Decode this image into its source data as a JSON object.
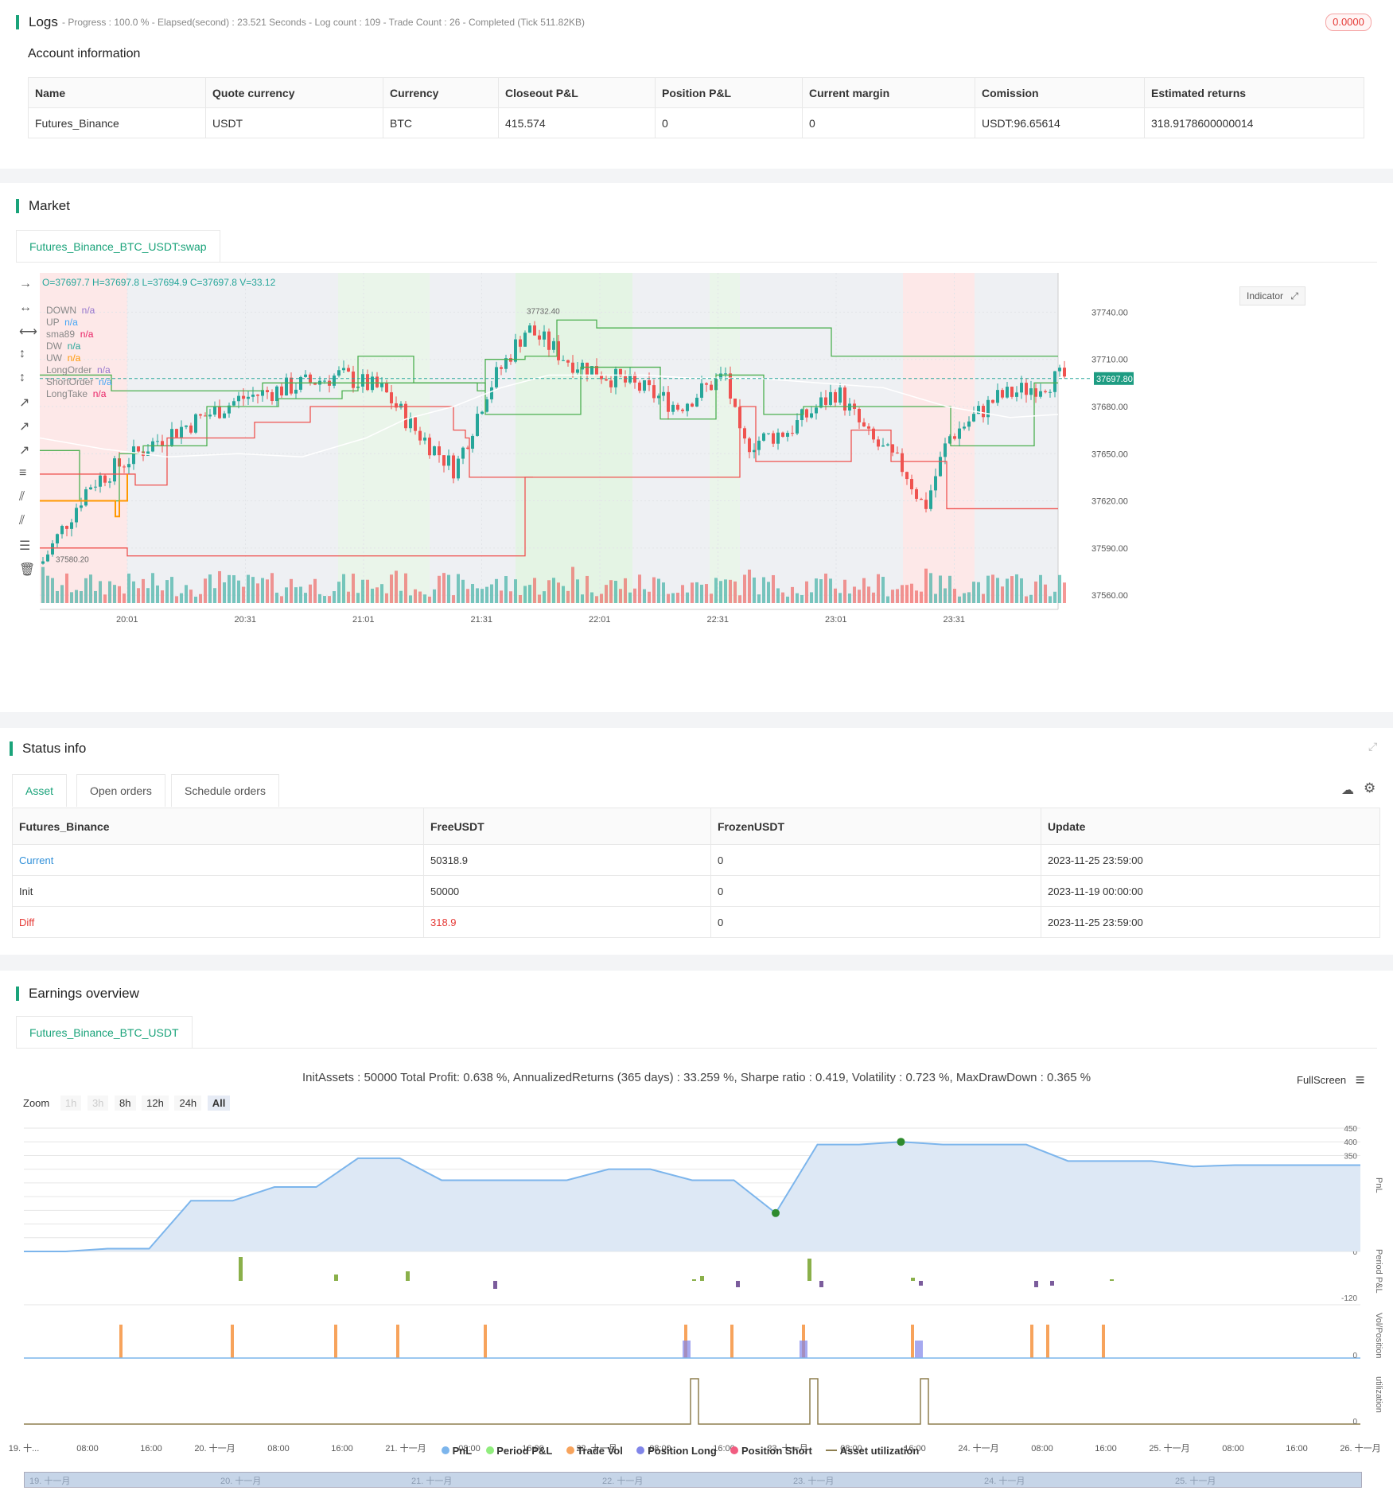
{
  "logs": {
    "title": "Logs",
    "summary": "- Progress : 100.0 % - Elapsed(second) : 23.521 Seconds - Log count : 109 - Trade Count : 26 - Completed (Tick 511.82KB)",
    "badge": "0.0000"
  },
  "account": {
    "title": "Account information",
    "columns": [
      "Name",
      "Quote currency",
      "Currency",
      "Closeout P&L",
      "Position P&L",
      "Current margin",
      "Comission",
      "Estimated returns"
    ],
    "row": [
      "Futures_Binance",
      "USDT",
      "BTC",
      "415.574",
      "0",
      "0",
      "USDT:96.65614",
      "318.9178600000014"
    ]
  },
  "market": {
    "title": "Market",
    "tab": "Futures_Binance_BTC_USDT:swap",
    "ohlc": "O=37697.7 H=37697.8 L=37694.9 C=37697.8 V=33.12",
    "indicator_button": "Indicator",
    "legend": [
      {
        "name": "DOWN",
        "value": "n/a",
        "color": "#9575cd"
      },
      {
        "name": "UP",
        "value": "n/a",
        "color": "#42a5f5"
      },
      {
        "name": "sma89",
        "value": "n/a",
        "color": "#e91e63"
      },
      {
        "name": "DW",
        "value": "n/a",
        "color": "#26a69a"
      },
      {
        "name": "UW",
        "value": "n/a",
        "color": "#ff9800"
      },
      {
        "name": "LongOrder",
        "value": "n/a",
        "color": "#9575cd"
      },
      {
        "name": "ShortOrder",
        "value": "n/a",
        "color": "#42a5f5"
      },
      {
        "name": "LongTake",
        "value": "n/a",
        "color": "#e91e63"
      }
    ],
    "price_label": "37697.80",
    "high_label": "37732.40",
    "low_label": "37580.20"
  },
  "chart_data": [
    {
      "type": "candlestick",
      "y_ticks": [
        "37740.00",
        "37710.00",
        "37680.00",
        "37650.00",
        "37620.00",
        "37590.00",
        "37560.00"
      ],
      "x_ticks": [
        "20:01",
        "20:31",
        "21:01",
        "21:31",
        "22:01",
        "22:31",
        "23:01",
        "23:31"
      ],
      "ylim": [
        37555,
        37765
      ],
      "last_price": 37697.8,
      "annotations": [
        "37732.40",
        "37580.20"
      ]
    },
    {
      "type": "line",
      "title": "InitAssets : 50000 Total Profit: 0.638 %, AnnualizedReturns (365 days) : 33.259 %, Sharpe ratio : 0.419, Volatility : 0.723 %, MaxDrawDown : 0.365 %",
      "series": [
        {
          "name": "PnL",
          "values": [
            0,
            0,
            10,
            10,
            185,
            185,
            235,
            235,
            340,
            340,
            260,
            260,
            260,
            260,
            300,
            300,
            260,
            260,
            140,
            390,
            390,
            400,
            390,
            390,
            390,
            330,
            330,
            330,
            310,
            315,
            315,
            315,
            315
          ]
        }
      ],
      "y_ticks": [
        "450",
        "400",
        "350",
        "300",
        "250",
        "200",
        "150",
        "100",
        "50",
        "0"
      ],
      "ylim": [
        0,
        450
      ],
      "x_ticks": [
        "19. 十...",
        "08:00",
        "16:00",
        "20. 十一月",
        "08:00",
        "16:00",
        "21. 十一月",
        "08:00",
        "16:00",
        "22. 十一月",
        "08:00",
        "16:00",
        "23. 十一月",
        "08:00",
        "16:00",
        "24. 十一月",
        "08:00",
        "16:00",
        "25. 十一月",
        "08:00",
        "16:00",
        "26. 十一月"
      ],
      "sub_axes": [
        "PnL",
        "Period P&L",
        "Vol/Position",
        "utilization"
      ],
      "period_label": "-120",
      "zero_label": "0"
    }
  ],
  "status": {
    "title": "Status info",
    "tabs": [
      "Asset",
      "Open orders",
      "Schedule orders"
    ],
    "columns": [
      "Futures_Binance",
      "FreeUSDT",
      "FrozenUSDT",
      "Update"
    ],
    "rows": [
      {
        "name": "Current",
        "free": "50318.9",
        "frozen": "0",
        "update": "2023-11-25 23:59:00"
      },
      {
        "name": "Init",
        "free": "50000",
        "frozen": "0",
        "update": "2023-11-19 00:00:00"
      },
      {
        "name": "Diff",
        "free": "318.9",
        "frozen": "0",
        "update": "2023-11-25 23:59:00"
      }
    ]
  },
  "earnings": {
    "title": "Earnings overview",
    "tab": "Futures_Binance_BTC_USDT",
    "fullscreen": "FullScreen",
    "zoom_label": "Zoom",
    "zoom_buttons": [
      "1h",
      "3h",
      "8h",
      "12h",
      "24h",
      "All"
    ],
    "legend": [
      {
        "name": "PnL",
        "color": "#7cb5ec"
      },
      {
        "name": "Period P&L",
        "color": "#90ed7d"
      },
      {
        "name": "Trade Vol",
        "color": "#f7a35c"
      },
      {
        "name": "Position Long",
        "color": "#8085e9"
      },
      {
        "name": "Position Short",
        "color": "#f15c80"
      },
      {
        "name": "Asset utilization",
        "color": "#8d7e4f"
      }
    ],
    "nav_labels": [
      "19. 十一月",
      "20. 十一月",
      "21. 十一月",
      "22. 十一月",
      "23. 十一月",
      "24. 十一月",
      "25. 十一月"
    ]
  }
}
